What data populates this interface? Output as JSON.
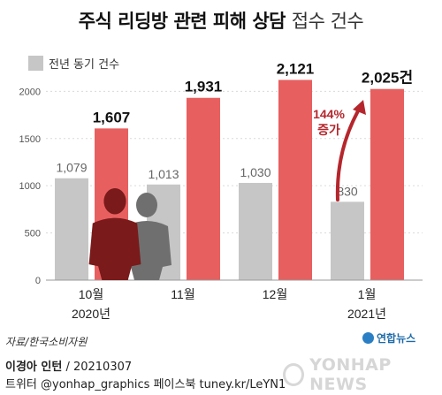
{
  "title_main": "주식 리딩방 관련 피해 상담",
  "title_sub": "접수 건수",
  "legend_label": "전년 동기 건수",
  "annotation": {
    "pct": "144%",
    "word": "증가"
  },
  "source": "자료/한국소비자원",
  "logo_text": "연합뉴스",
  "watermark_text": "YONHAP NEWS",
  "credit_name": "이경아 인턴",
  "credit_date": " / 20210307",
  "credit_line2": "트위터 @yonhap_graphics  페이스북 tuney.kr/LeYN1",
  "colors": {
    "current": "#e85f5f",
    "previous": "#c6c6c6",
    "arrow": "#b5262c",
    "grid": "#d9d9d9",
    "figure": "#7a1a1a",
    "figure2": "#6f6f6f"
  },
  "chart_data": {
    "type": "bar",
    "categories": [
      "10월",
      "11월",
      "12월",
      "1월"
    ],
    "year_labels": [
      "2020년",
      "",
      "",
      "2021년"
    ],
    "series": [
      {
        "name": "전년 동기 건수",
        "values": [
          1079,
          1013,
          1030,
          830
        ],
        "labels": [
          "1,079",
          "1,013",
          "1,030",
          "830"
        ]
      },
      {
        "values": [
          1607,
          1931,
          2121,
          2025
        ],
        "labels": [
          "1,607",
          "1,931",
          "2,121",
          "2,025건"
        ]
      }
    ],
    "yticks": [
      "0",
      "500",
      "1000",
      "1500",
      "2000"
    ],
    "ylim": [
      0,
      2200
    ],
    "grid": true,
    "legend_position": "top-left"
  }
}
